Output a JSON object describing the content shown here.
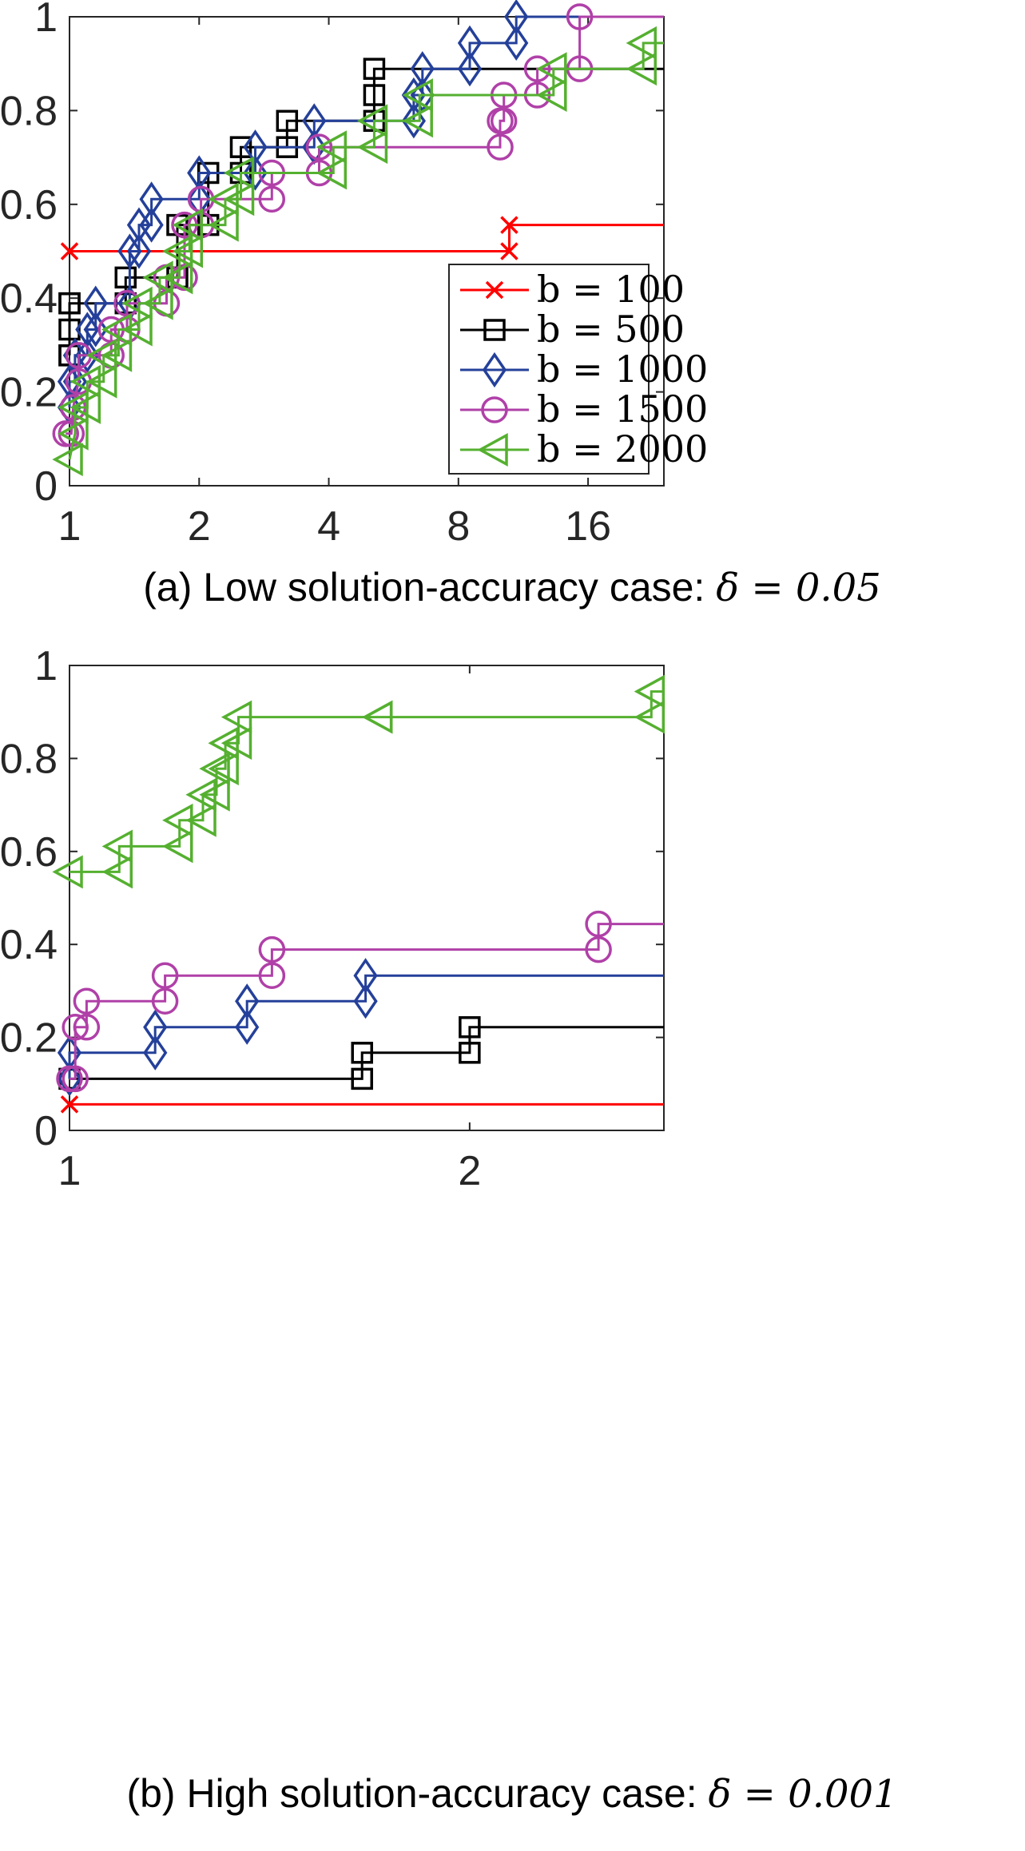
{
  "chart_data": [
    {
      "type": "line",
      "panel": "a",
      "caption": "(a) Low solution-accuracy case:",
      "caption_math": "δ = 0.05",
      "xscale": "log2",
      "xlim": [
        1,
        24
      ],
      "ylim": [
        0,
        1
      ],
      "xticks": [
        1,
        2,
        4,
        8,
        16
      ],
      "xtick_labels": [
        "1",
        "2",
        "4",
        "8",
        "16"
      ],
      "yticks": [
        0,
        0.2,
        0.4,
        0.6,
        0.8,
        1
      ],
      "ytick_labels": [
        "0",
        "0.2",
        "0.4",
        "0.6",
        "0.8",
        "1"
      ],
      "legend": "inside lower-right",
      "grid": false,
      "series": [
        {
          "name": "b = 100",
          "color": "#ff0000",
          "marker": "x",
          "x": [
            1,
            10.5,
            10.5
          ],
          "y": [
            0.5,
            0.5,
            0.556
          ]
        },
        {
          "name": "b = 500",
          "color": "#000000",
          "marker": "square",
          "x": [
            1,
            1,
            1,
            1,
            1,
            1.35,
            1.35,
            1.78,
            1.78,
            2.1,
            2.1,
            2.5,
            2.5,
            3.2,
            3.2,
            5.1,
            5.1,
            5.1
          ],
          "y": [
            0.278,
            0.278,
            0.333,
            0.389,
            0.389,
            0.389,
            0.444,
            0.444,
            0.556,
            0.556,
            0.667,
            0.667,
            0.722,
            0.722,
            0.778,
            0.778,
            0.833,
            0.889
          ]
        },
        {
          "name": "b = 1000",
          "color": "#24409a",
          "marker": "diamond",
          "x": [
            1,
            1,
            1.03,
            1.03,
            1.1,
            1.1,
            1.15,
            1.15,
            1.38,
            1.38,
            1.45,
            1.45,
            1.55,
            1.55,
            2,
            2,
            2.7,
            2.7,
            3.7,
            3.7,
            6.3,
            6.3,
            6.6,
            6.6,
            8.5,
            8.5,
            10.9,
            10.9
          ],
          "y": [
            0.167,
            0.222,
            0.222,
            0.278,
            0.278,
            0.333,
            0.333,
            0.389,
            0.389,
            0.5,
            0.5,
            0.556,
            0.556,
            0.611,
            0.611,
            0.667,
            0.667,
            0.722,
            0.722,
            0.778,
            0.778,
            0.833,
            0.833,
            0.889,
            0.889,
            0.944,
            0.944,
            1.0
          ]
        },
        {
          "name": "b = 1500",
          "color": "#b040a8",
          "marker": "circle",
          "x": [
            0.98,
            1.01,
            1.02,
            1.05,
            1.05,
            1.25,
            1.25,
            1.36,
            1.36,
            1.68,
            1.68,
            1.85,
            1.85,
            2.02,
            2.02,
            2.95,
            2.95,
            3.8,
            3.8,
            10.0,
            10.0,
            10.2,
            10.2,
            12.2,
            12.2,
            15.3,
            15.3
          ],
          "y": [
            0.111,
            0.111,
            0.167,
            0.222,
            0.278,
            0.278,
            0.333,
            0.333,
            0.389,
            0.389,
            0.444,
            0.444,
            0.556,
            0.556,
            0.611,
            0.611,
            0.667,
            0.667,
            0.722,
            0.722,
            0.778,
            0.778,
            0.833,
            0.833,
            0.889,
            0.889,
            1.0
          ]
        },
        {
          "name": "b = 2000",
          "color": "#55b030",
          "marker": "triangle-left",
          "x": [
            1,
            1.03,
            1.03,
            1.1,
            1.1,
            1.2,
            1.2,
            1.3,
            1.3,
            1.45,
            1.45,
            1.62,
            1.62,
            1.8,
            1.8,
            1.9,
            1.9,
            2.3,
            2.3,
            2.5,
            2.5,
            4.1,
            4.1,
            5.1,
            5.1,
            6.5,
            6.5,
            13.3,
            13.3,
            21.5,
            21.5
          ],
          "y": [
            0.056,
            0.111,
            0.167,
            0.167,
            0.222,
            0.222,
            0.278,
            0.278,
            0.333,
            0.333,
            0.389,
            0.389,
            0.444,
            0.444,
            0.5,
            0.5,
            0.556,
            0.556,
            0.611,
            0.611,
            0.667,
            0.667,
            0.722,
            0.722,
            0.778,
            0.778,
            0.833,
            0.833,
            0.889,
            0.889,
            0.944
          ]
        }
      ]
    },
    {
      "type": "line",
      "panel": "b",
      "caption": "(b) High solution-accuracy case:",
      "caption_math": "δ = 0.001",
      "xscale": "log2",
      "xlim": [
        1,
        2.8
      ],
      "ylim": [
        0,
        1
      ],
      "xticks": [
        1,
        2
      ],
      "xtick_labels": [
        "1",
        "2"
      ],
      "yticks": [
        0,
        0.2,
        0.4,
        0.6,
        0.8,
        1
      ],
      "ytick_labels": [
        "0",
        "0.2",
        "0.4",
        "0.6",
        "0.8",
        "1"
      ],
      "grid": false,
      "series": [
        {
          "name": "b = 100",
          "color": "#ff0000",
          "marker": "x",
          "x": [
            1
          ],
          "y": [
            0.056
          ]
        },
        {
          "name": "b = 500",
          "color": "#000000",
          "marker": "square",
          "x": [
            1,
            1.66,
            1.66,
            2,
            2
          ],
          "y": [
            0.111,
            0.111,
            0.167,
            0.167,
            0.222
          ]
        },
        {
          "name": "b = 1000",
          "color": "#24409a",
          "marker": "diamond",
          "x": [
            1,
            1,
            1.16,
            1.16,
            1.36,
            1.36,
            1.67,
            1.67
          ],
          "y": [
            0.111,
            0.167,
            0.167,
            0.222,
            0.222,
            0.278,
            0.278,
            0.333
          ]
        },
        {
          "name": "b = 1500",
          "color": "#b040a8",
          "marker": "circle",
          "x": [
            1,
            1.01,
            1.01,
            1.03,
            1.03,
            1.18,
            1.18,
            1.42,
            1.42,
            2.5,
            2.5
          ],
          "y": [
            0.111,
            0.111,
            0.222,
            0.222,
            0.278,
            0.278,
            0.333,
            0.333,
            0.389,
            0.389,
            0.444
          ]
        },
        {
          "name": "b = 2000",
          "color": "#55b030",
          "marker": "triangle-left",
          "x": [
            1,
            1.09,
            1.09,
            1.21,
            1.21,
            1.26,
            1.26,
            1.29,
            1.29,
            1.31,
            1.31,
            1.34,
            1.34,
            1.71,
            1.71,
            2.74,
            2.74
          ],
          "y": [
            0.556,
            0.556,
            0.611,
            0.611,
            0.667,
            0.667,
            0.722,
            0.722,
            0.778,
            0.778,
            0.833,
            0.833,
            0.889,
            0.889,
            0.889,
            0.889,
            0.944
          ]
        }
      ]
    }
  ]
}
